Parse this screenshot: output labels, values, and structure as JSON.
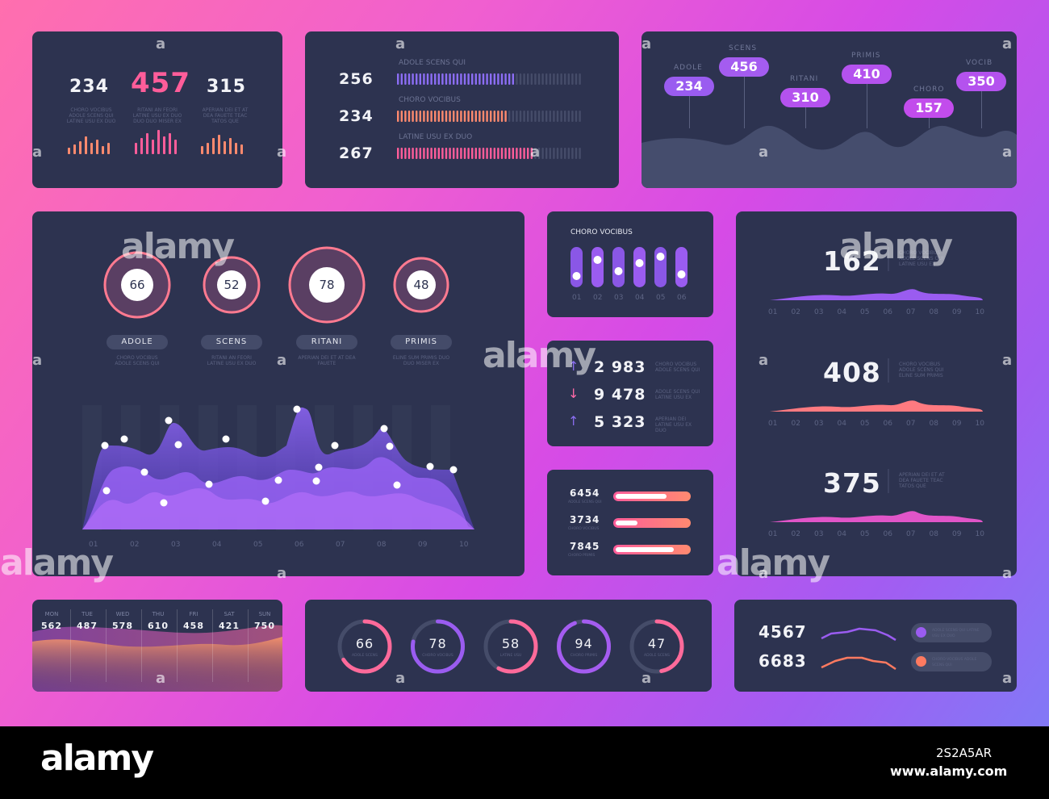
{
  "panel_stats": {
    "items": [
      {
        "value": "234",
        "caption": "CHORO VOCIBUS ADOLE SCENS QUI LATINE USU EX DUO",
        "color": "#f2f3f7"
      },
      {
        "value": "457",
        "caption": "RITANI AN FEORI LATINE USU EX DUO DUO DUO MISER EX",
        "color": "#ff5d9a"
      },
      {
        "value": "315",
        "caption": "APERIAN DEI ET AT DEA FAUETE TEAC TATOS QUE",
        "color": "#f2f3f7"
      }
    ]
  },
  "panel_bars": {
    "rows": [
      {
        "value": "256",
        "label": "ADOLE SCENS QUI",
        "fill": 0.63,
        "color": "#8c6ef5"
      },
      {
        "value": "234",
        "label": "CHORO VOCIBUS",
        "fill": 0.59,
        "color": "#ff8a6e"
      },
      {
        "value": "267",
        "label": "LATINE USU EX DUO",
        "fill": 0.74,
        "color": "#ff5d9a"
      }
    ]
  },
  "panel_pills": {
    "items": [
      {
        "label": "ADOLE",
        "value": "234",
        "color": "#9a5cf0"
      },
      {
        "label": "SCENS",
        "value": "456",
        "color": "#a45cf0"
      },
      {
        "label": "RITANI",
        "value": "310",
        "color": "#b452ee"
      },
      {
        "label": "PRIMIS",
        "value": "410",
        "color": "#b452ee"
      },
      {
        "label": "CHORO",
        "value": "157",
        "color": "#c24cec"
      },
      {
        "label": "VOCIB",
        "value": "350",
        "color": "#b452ee"
      }
    ]
  },
  "panel_main": {
    "circles": [
      {
        "value": "66",
        "label": "ADOLE",
        "caption": "CHORO VOCIBUS ADOLE SCENS QUI"
      },
      {
        "value": "52",
        "label": "SCENS",
        "caption": "RITANI AN FEORI LATINE USU EX DUO"
      },
      {
        "value": "78",
        "label": "RITANI",
        "caption": "APERIAN DEI ET AT DEA FAUETE"
      },
      {
        "value": "48",
        "label": "PRIMIS",
        "caption": "ELINE SUM PRIMIS DUO DUO MISER EX"
      }
    ],
    "x_ticks": [
      "01",
      "02",
      "03",
      "04",
      "05",
      "06",
      "07",
      "08",
      "09",
      "10"
    ]
  },
  "panel_sliders": {
    "title": "CHORO VOCIBUS",
    "levels": [
      0.25,
      0.75,
      0.4,
      0.65,
      0.85,
      0.3
    ],
    "labels": [
      "01",
      "02",
      "03",
      "04",
      "05",
      "06"
    ]
  },
  "panel_trends": {
    "rows": [
      {
        "arrow": "↑",
        "value": "2 983",
        "caption": "CHORO VOCIBUS ADOLE SCENS QUI",
        "arrow_color": "#8a6ef0"
      },
      {
        "arrow": "↓",
        "value": "9 478",
        "caption": "ADOLE SCENS QUI LATINE USU EX",
        "arrow_color": "#ff6aa8"
      },
      {
        "arrow": "↑",
        "value": "5 323",
        "caption": "APERIAN DEI LATINE USU EX DUO",
        "arrow_color": "#8a6ef0"
      }
    ]
  },
  "panel_progress": {
    "rows": [
      {
        "value": "6454",
        "caption": "ADOLE SCENS QUI",
        "fill": 0.7
      },
      {
        "value": "3734",
        "caption": "CHORO VOCIBUS",
        "fill": 0.3
      },
      {
        "value": "7845",
        "caption": "CHORO PRIMIS",
        "fill": 0.8
      }
    ]
  },
  "panel_right": {
    "rows": [
      {
        "value": "162",
        "caption": "CHORO VOCIBUS ADOLE SCENS QUI LATINE USU EX",
        "color": "#9a5cf0"
      },
      {
        "value": "408",
        "caption": "CHORO VOCIBUS ADOLE SCENS QUI ELINE SUM PRIMIS",
        "color": "#ff7a80"
      },
      {
        "value": "375",
        "caption": "APERIAN DEI ET AT DEA FAUETE TEAC TATOS QUE",
        "color": "#e055c8"
      }
    ],
    "x_ticks": [
      "01",
      "02",
      "03",
      "04",
      "05",
      "06",
      "07",
      "08",
      "09",
      "10"
    ]
  },
  "panel_week": {
    "days": [
      {
        "day": "MON",
        "value": "562"
      },
      {
        "day": "TUE",
        "value": "487"
      },
      {
        "day": "WED",
        "value": "578"
      },
      {
        "day": "THU",
        "value": "610"
      },
      {
        "day": "FRI",
        "value": "458"
      },
      {
        "day": "SAT",
        "value": "421"
      },
      {
        "day": "SUN",
        "value": "750"
      }
    ]
  },
  "panel_rings": {
    "items": [
      {
        "value": "66",
        "caption": "ADOLE SCENS",
        "pct": 0.66,
        "color": "#ff6a9a"
      },
      {
        "value": "78",
        "caption": "CHORO VOCIBUS",
        "pct": 0.78,
        "color": "#9a5cf0"
      },
      {
        "value": "58",
        "caption": "LATINE USU",
        "pct": 0.58,
        "color": "#ff6a9a"
      },
      {
        "value": "94",
        "caption": "CHORO PRIMIS",
        "pct": 0.94,
        "color": "#a45cf0"
      },
      {
        "value": "47",
        "caption": "ADOLE SCENS",
        "pct": 0.47,
        "color": "#ff6a9a"
      }
    ]
  },
  "panel_legend": {
    "rows": [
      {
        "value": "4567",
        "legend": "ADOLE SCENS QUI LATINE USU EX DUO",
        "color": "#9a5cf0"
      },
      {
        "value": "6683",
        "legend": "CHORO VOCIBUS ADOLE SCENS QUI",
        "color": "#ff7a60"
      }
    ]
  },
  "watermark": {
    "text": "alamy",
    "url": "www.alamy.com",
    "id": "2S2A5AR"
  }
}
